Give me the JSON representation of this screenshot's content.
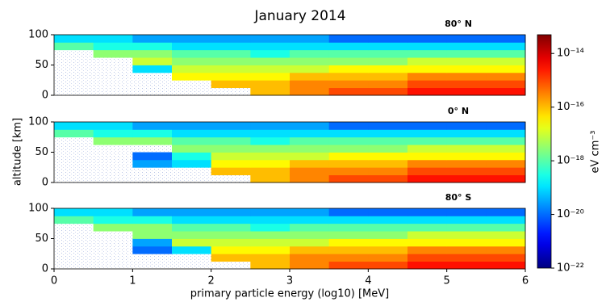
{
  "figure": {
    "title": "January 2014",
    "ylabel": "altitude [km]",
    "xlabel": "primary particle energy (log10) [MeV]",
    "colorbar": {
      "label": "eV cm⁻³",
      "colormap": "jet",
      "log": true,
      "zlim": [
        1e-22,
        5e-14
      ],
      "ticks": [
        {
          "value": 1e-22,
          "label": "10⁻²²"
        },
        {
          "value": 1e-20,
          "label": "10⁻²⁰"
        },
        {
          "value": 1e-18,
          "label": "10⁻¹⁸"
        },
        {
          "value": 1e-16,
          "label": "10⁻¹⁶"
        },
        {
          "value": 1e-14,
          "label": "10⁻¹⁴"
        }
      ]
    }
  },
  "chart_data": [
    {
      "type": "heatmap",
      "subtitle": "80° N",
      "xlim": [
        0,
        6
      ],
      "ylim": [
        0,
        100
      ],
      "yticks": [
        0,
        50,
        100
      ],
      "xbins": [
        0,
        0.5,
        1,
        1.5,
        2,
        2.5,
        3,
        3.5,
        4,
        4.5,
        5,
        5.5,
        6
      ],
      "ybins": [
        0,
        12.5,
        25,
        37.5,
        50,
        62.5,
        75,
        87.5,
        100
      ],
      "z": [
        [
          null,
          null,
          null,
          null,
          null,
          1e-16,
          3e-16,
          1e-15,
          1e-15,
          3e-15,
          3e-15,
          3e-15
        ],
        [
          null,
          null,
          null,
          null,
          1e-16,
          1e-16,
          3e-16,
          3e-16,
          3e-16,
          1e-15,
          1e-15,
          1e-15
        ],
        [
          null,
          null,
          null,
          3e-17,
          3e-17,
          3e-17,
          1e-16,
          1e-16,
          1e-16,
          3e-16,
          3e-16,
          3e-16
        ],
        [
          null,
          null,
          1e-19,
          1e-17,
          1e-17,
          1e-17,
          1e-17,
          3e-17,
          3e-17,
          3e-17,
          3e-17,
          3e-17
        ],
        [
          null,
          null,
          1e-17,
          3e-18,
          3e-18,
          3e-18,
          3e-18,
          3e-18,
          3e-18,
          1e-17,
          1e-17,
          1e-17
        ],
        [
          null,
          3e-18,
          3e-18,
          1e-18,
          1e-18,
          3e-19,
          1e-18,
          1e-18,
          1e-18,
          1e-18,
          1e-18,
          1e-18
        ],
        [
          1e-18,
          3e-19,
          3e-19,
          1e-19,
          1e-19,
          1e-19,
          1e-19,
          1e-19,
          1e-19,
          1e-19,
          1e-19,
          1e-19
        ],
        [
          1e-19,
          1e-19,
          3e-20,
          3e-20,
          3e-20,
          3e-20,
          3e-20,
          1e-20,
          1e-20,
          1e-20,
          1e-20,
          1e-20
        ]
      ]
    },
    {
      "type": "heatmap",
      "subtitle": "0° N",
      "xlim": [
        0,
        6
      ],
      "ylim": [
        0,
        100
      ],
      "yticks": [
        0,
        50,
        100
      ],
      "xbins": [
        0,
        0.5,
        1,
        1.5,
        2,
        2.5,
        3,
        3.5,
        4,
        4.5,
        5,
        5.5,
        6
      ],
      "ybins": [
        0,
        12.5,
        25,
        37.5,
        50,
        62.5,
        75,
        87.5,
        100
      ],
      "z": [
        [
          null,
          null,
          null,
          null,
          null,
          1e-16,
          3e-16,
          1e-15,
          1e-15,
          3e-15,
          3e-15,
          3e-15
        ],
        [
          null,
          null,
          null,
          null,
          1e-16,
          1e-16,
          3e-16,
          3e-16,
          3e-16,
          1e-15,
          1e-15,
          1e-15
        ],
        [
          null,
          null,
          3e-20,
          1e-19,
          3e-17,
          3e-17,
          1e-16,
          1e-16,
          1e-16,
          3e-16,
          3e-16,
          3e-16
        ],
        [
          null,
          null,
          1e-20,
          3e-19,
          1e-17,
          1e-17,
          1e-17,
          3e-17,
          3e-17,
          3e-17,
          3e-17,
          3e-17
        ],
        [
          null,
          null,
          null,
          3e-18,
          3e-18,
          3e-18,
          3e-18,
          3e-18,
          3e-18,
          1e-17,
          1e-17,
          1e-17
        ],
        [
          null,
          3e-18,
          3e-18,
          1e-18,
          1e-18,
          3e-19,
          1e-18,
          1e-18,
          1e-18,
          1e-18,
          1e-18,
          1e-18
        ],
        [
          1e-18,
          3e-19,
          3e-19,
          1e-19,
          1e-19,
          1e-19,
          1e-19,
          1e-19,
          1e-19,
          1e-19,
          1e-19,
          1e-19
        ],
        [
          1e-19,
          1e-19,
          3e-20,
          3e-20,
          3e-20,
          3e-20,
          3e-20,
          1e-20,
          1e-20,
          1e-20,
          1e-20,
          1e-20
        ]
      ]
    },
    {
      "type": "heatmap",
      "subtitle": "80° S",
      "xlim": [
        0,
        6
      ],
      "ylim": [
        0,
        100
      ],
      "yticks": [
        0,
        50,
        100
      ],
      "xticks": [
        0,
        1,
        2,
        3,
        4,
        5,
        6
      ],
      "xbins": [
        0,
        0.5,
        1,
        1.5,
        2,
        2.5,
        3,
        3.5,
        4,
        4.5,
        5,
        5.5,
        6
      ],
      "ybins": [
        0,
        12.5,
        25,
        37.5,
        50,
        62.5,
        75,
        87.5,
        100
      ],
      "z": [
        [
          null,
          null,
          null,
          null,
          null,
          1e-16,
          3e-16,
          1e-15,
          1e-15,
          3e-15,
          3e-15,
          3e-15
        ],
        [
          null,
          null,
          null,
          null,
          1e-16,
          1e-16,
          3e-16,
          3e-16,
          3e-16,
          1e-15,
          1e-15,
          1e-15
        ],
        [
          null,
          null,
          1e-20,
          1e-19,
          3e-17,
          3e-17,
          1e-16,
          1e-16,
          1e-16,
          3e-16,
          3e-16,
          3e-16
        ],
        [
          null,
          null,
          3e-20,
          1e-17,
          1e-17,
          1e-17,
          1e-17,
          3e-17,
          3e-17,
          3e-17,
          3e-17,
          3e-17
        ],
        [
          null,
          null,
          3e-18,
          3e-18,
          3e-18,
          3e-18,
          3e-18,
          3e-18,
          3e-18,
          1e-17,
          1e-17,
          1e-17
        ],
        [
          null,
          3e-18,
          3e-18,
          1e-18,
          1e-18,
          3e-19,
          1e-18,
          1e-18,
          1e-18,
          1e-18,
          1e-18,
          1e-18
        ],
        [
          1e-18,
          3e-19,
          3e-19,
          1e-19,
          1e-19,
          1e-19,
          1e-19,
          1e-19,
          1e-19,
          1e-19,
          1e-19,
          1e-19
        ],
        [
          1e-19,
          1e-19,
          3e-20,
          3e-20,
          3e-20,
          3e-20,
          3e-20,
          1e-20,
          1e-20,
          1e-20,
          1e-20,
          1e-20
        ]
      ]
    }
  ]
}
